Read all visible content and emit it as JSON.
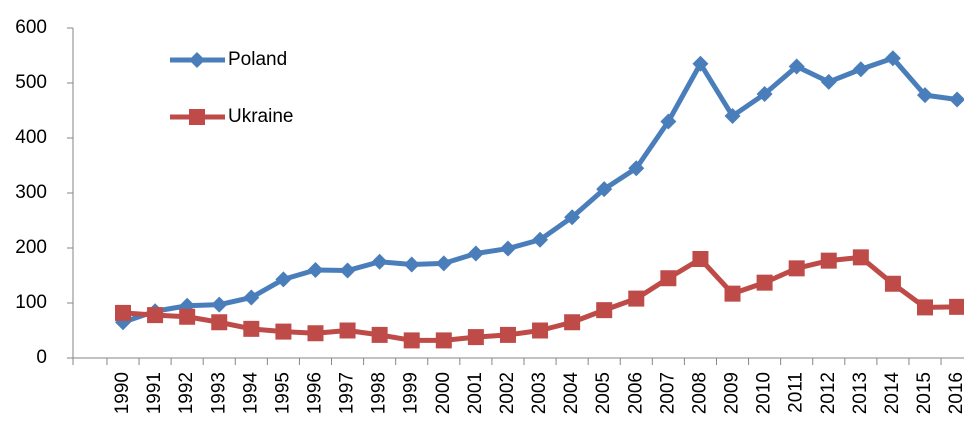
{
  "chart_data": {
    "type": "line",
    "categories": [
      "1990",
      "1991",
      "1992",
      "1993",
      "1994",
      "1995",
      "1996",
      "1997",
      "1998",
      "1999",
      "2000",
      "2001",
      "2002",
      "2003",
      "2004",
      "2005",
      "2006",
      "2007",
      "2008",
      "2009",
      "2010",
      "2011",
      "2012",
      "2013",
      "2014",
      "2015",
      "2016"
    ],
    "series": [
      {
        "name": "Poland",
        "color": "#4a7ebb",
        "marker": "diamond",
        "values": [
          65,
          85,
          95,
          97,
          110,
          143,
          160,
          159,
          175,
          170,
          172,
          190,
          199,
          215,
          256,
          307,
          345,
          430,
          535,
          440,
          480,
          530,
          502,
          525,
          545,
          478,
          470
        ]
      },
      {
        "name": "Ukraine",
        "color": "#be4b48",
        "marker": "square",
        "values": [
          82,
          78,
          75,
          65,
          53,
          48,
          45,
          50,
          42,
          32,
          32,
          38,
          42,
          50,
          65,
          87,
          108,
          145,
          180,
          117,
          137,
          163,
          177,
          183,
          135,
          92,
          93
        ]
      }
    ],
    "ylim": [
      0,
      600
    ],
    "yticks": [
      0,
      100,
      200,
      300,
      400,
      500,
      600
    ],
    "legend": "upper left"
  }
}
